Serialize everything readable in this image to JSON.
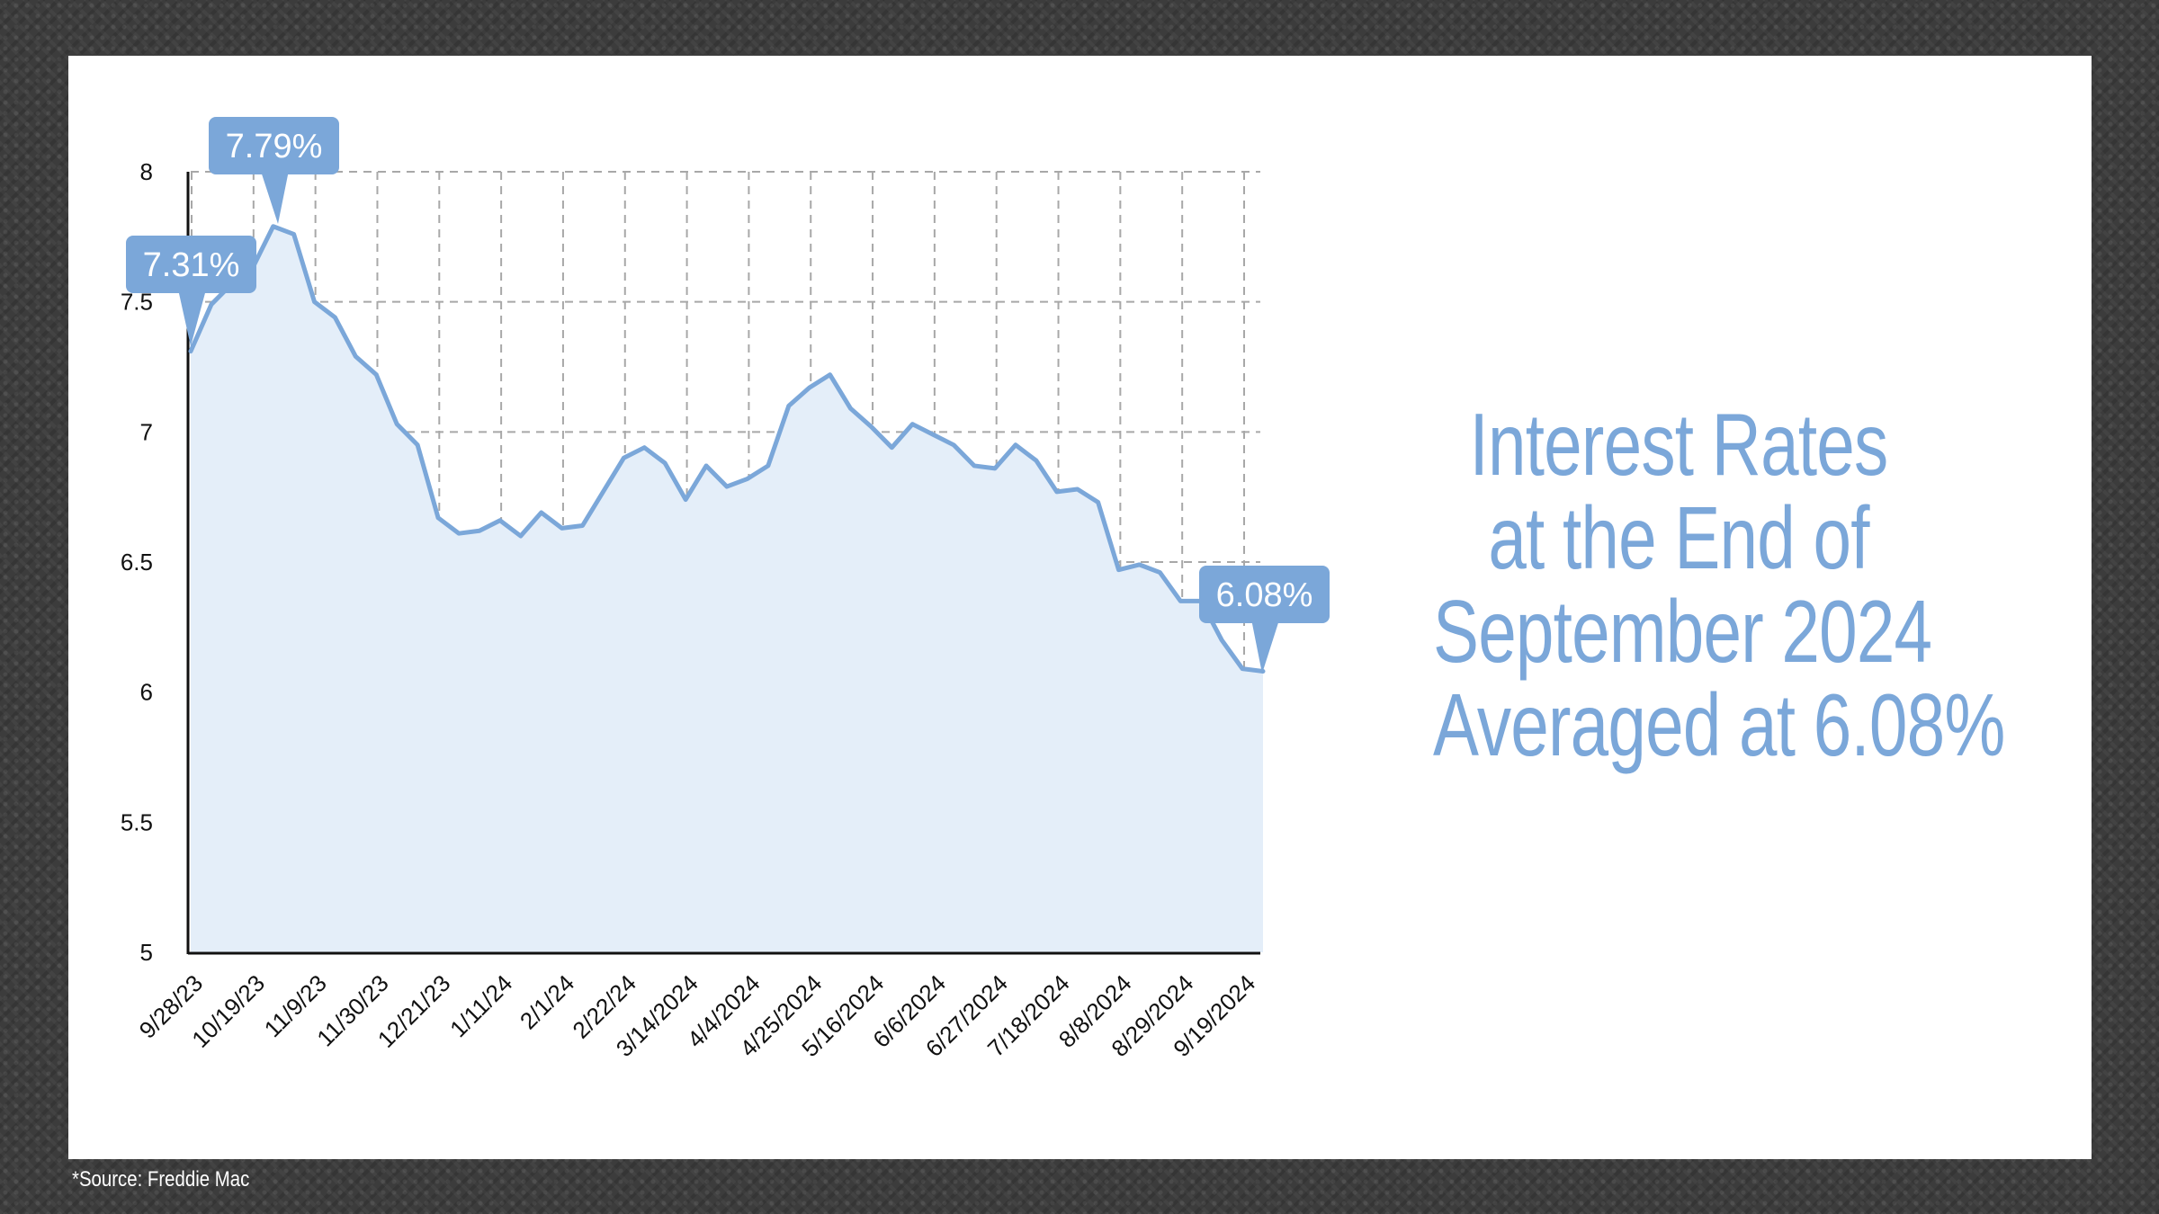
{
  "headline": {
    "line1": "Interest Rates",
    "line2": "at the End of",
    "line3": "September 2024",
    "line4": "Averaged at 6.08%"
  },
  "source": "*Source: Freddie Mac",
  "colors": {
    "line": "#7ba7d9",
    "area": "#e4eef9",
    "callout": "#7ba7d9",
    "grid": "#a8a8a8",
    "headline": "#7ba7d9"
  },
  "chart_data": {
    "type": "area",
    "title": "",
    "xlabel": "",
    "ylabel": "",
    "ylim": [
      5,
      8
    ],
    "yticks": [
      "5",
      "5.5",
      "6",
      "6.5",
      "7",
      "7.5",
      "8"
    ],
    "grid": true,
    "x_tick_labels": [
      "9/28/23",
      "10/19/23",
      "11/9/23",
      "11/30/23",
      "12/21/23",
      "1/11/24",
      "2/1/24",
      "2/22/24",
      "3/14/2024",
      "4/4/2024",
      "4/25/2024",
      "5/16/2024",
      "6/6/2024",
      "6/27/2024",
      "7/18/2024",
      "8/8/2024",
      "8/29/2024",
      "9/19/2024"
    ],
    "values": [
      7.31,
      7.49,
      7.57,
      7.63,
      7.79,
      7.76,
      7.5,
      7.44,
      7.29,
      7.22,
      7.03,
      6.95,
      6.67,
      6.61,
      6.62,
      6.66,
      6.6,
      6.69,
      6.63,
      6.64,
      6.77,
      6.9,
      6.94,
      6.88,
      6.74,
      6.87,
      6.79,
      6.82,
      6.87,
      7.1,
      7.17,
      7.22,
      7.09,
      7.02,
      6.94,
      7.03,
      6.99,
      6.95,
      6.87,
      6.86,
      6.95,
      6.89,
      6.77,
      6.78,
      6.73,
      6.47,
      6.49,
      6.46,
      6.35,
      6.35,
      6.2,
      6.09,
      6.08
    ],
    "annotations": [
      {
        "label": "7.31%",
        "index": 0
      },
      {
        "label": "7.79%",
        "index": 4
      },
      {
        "label": "6.08%",
        "index": 52
      }
    ]
  }
}
